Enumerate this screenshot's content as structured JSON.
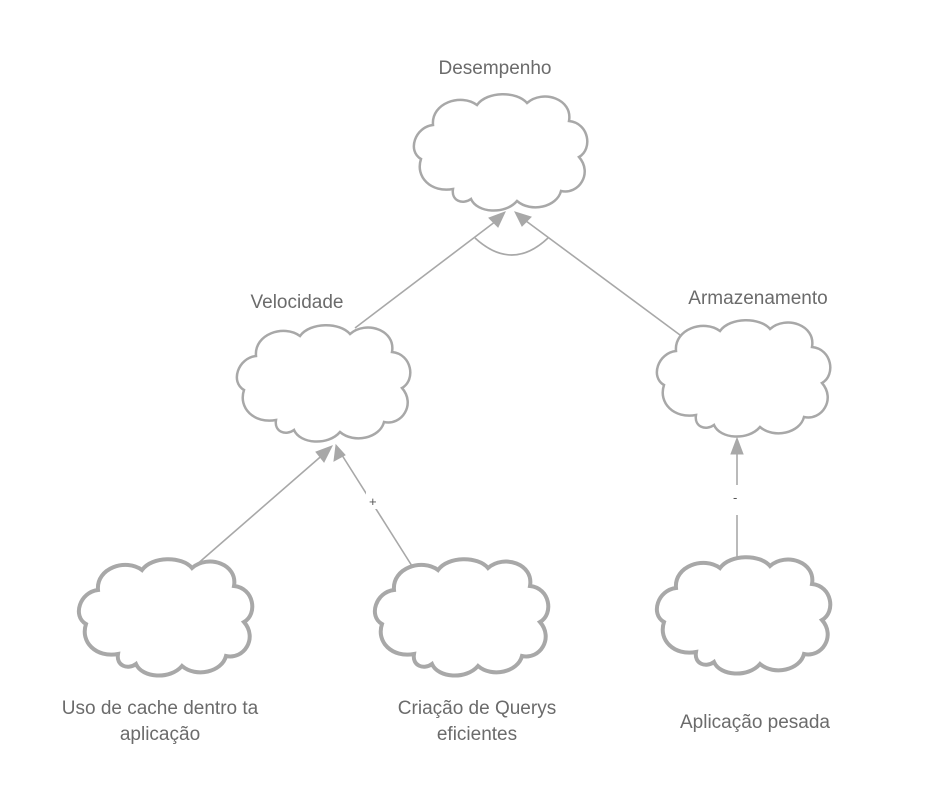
{
  "goals": {
    "desempenho": "Desempenho",
    "velocidade": "Velocidade",
    "armazenamento": "Armazenamento",
    "cache": "Uso de cache dentro ta\naplicação",
    "queries": "Criação de Querys\neficientes",
    "pesada": "Aplicação pesada"
  },
  "contributions": {
    "queries_to_velocidade": "+",
    "pesada_to_armazenamento": "-"
  },
  "colors": {
    "stroke": "#a8a8a8",
    "text": "#6b6b6b"
  }
}
